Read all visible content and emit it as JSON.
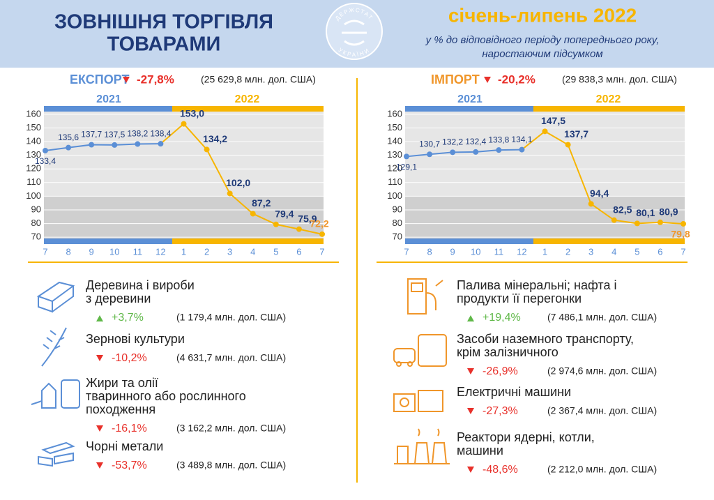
{
  "header": {
    "title_line1": "ЗОВНІШНЯ ТОРГІВЛЯ",
    "title_line2": "ТОВАРАМИ",
    "logo_top": "ДЕРЖСТАТ",
    "logo_bottom": "УКРАЇНИ",
    "period": "січень-липень 2022",
    "subtitle_line1": "у % до відповідного періоду попереднього року,",
    "subtitle_line2": "наростаючим підсумком"
  },
  "chart_data": [
    {
      "type": "line",
      "title": "ЕКСПОРТ",
      "change": "-27,8%",
      "total": "(25 629,8 млн. дол. США)",
      "years": [
        "2021",
        "2022"
      ],
      "categories": [
        "7",
        "8",
        "9",
        "10",
        "11",
        "12",
        "1",
        "2",
        "3",
        "4",
        "5",
        "6",
        "7"
      ],
      "values": [
        133.4,
        135.6,
        137.7,
        137.5,
        138.2,
        138.4,
        153.0,
        134.2,
        102.0,
        87.2,
        79.4,
        75.9,
        72.2
      ],
      "value_labels": [
        "133,4",
        "135,6",
        "137,7",
        "137,5",
        "138,2",
        "138,4",
        "153,0",
        "134,2",
        "102,0",
        "87,2",
        "79,4",
        "75,9",
        "72,2"
      ],
      "ylim": [
        66,
        163.5
      ],
      "yticks": [
        70,
        80,
        90,
        100,
        110,
        120,
        130,
        140,
        150,
        160
      ],
      "color_2021": "#5b8fd6",
      "color_2022": "#f7b500",
      "last_label_color": "#f0962a",
      "title_color": "#5b8fd6"
    },
    {
      "type": "line",
      "title": "ІМПОРТ",
      "change": "-20,2%",
      "total": "(29 838,3 млн. дол. США)",
      "years": [
        "2021",
        "2022"
      ],
      "categories": [
        "7",
        "8",
        "9",
        "10",
        "11",
        "12",
        "1",
        "2",
        "3",
        "4",
        "5",
        "6",
        "7"
      ],
      "values": [
        129.1,
        130.7,
        132.2,
        132.4,
        133.8,
        134.1,
        147.5,
        137.7,
        94.4,
        82.5,
        80.1,
        80.9,
        79.8
      ],
      "value_labels": [
        "129,1",
        "130,7",
        "132,2",
        "132,4",
        "133,8",
        "134,1",
        "147,5",
        "137,7",
        "94,4",
        "82,5",
        "80,1",
        "80,9",
        "79,8"
      ],
      "ylim": [
        66,
        163.5
      ],
      "yticks": [
        70,
        80,
        90,
        100,
        110,
        120,
        130,
        140,
        150,
        160
      ],
      "color_2021": "#5b8fd6",
      "color_2022": "#f7b500",
      "last_label_color": "#f0962a",
      "title_color": "#f0962a"
    }
  ],
  "export_items": [
    {
      "name": [
        "Деревина і вироби",
        "з деревини"
      ],
      "change": "+3,7%",
      "amount": "(1 179,4 млн. дол. США)"
    },
    {
      "name": [
        "Зернові культури"
      ],
      "change": "-10,2%",
      "amount": "(4 631,7 млн. дол. США)"
    },
    {
      "name": [
        "Жири та олії",
        "тваринного або рослинного",
        "походження"
      ],
      "change": "-16,1%",
      "amount": "(3 162,2 млн. дол. США)"
    },
    {
      "name": [
        "Чорні метали"
      ],
      "change": "-53,7%",
      "amount": "(3 489,8 млн. дол. США)"
    }
  ],
  "import_items": [
    {
      "name": [
        "Палива мінеральні; нафта і",
        "продукти її перегонки"
      ],
      "change": "+19,4%",
      "amount": "(7 486,1 млн. дол. США)"
    },
    {
      "name": [
        "Засоби наземного транспорту,",
        "крім залізничного"
      ],
      "change": "-26,9%",
      "amount": "(2 974,6 млн. дол. США)"
    },
    {
      "name": [
        "Електричні машини"
      ],
      "change": "-27,3%",
      "amount": "(2 367,4 млн. дол. США)"
    },
    {
      "name": [
        "Реактори ядерні, котли,",
        "машини"
      ],
      "change": "-48,6%",
      "amount": "(2 212,0 млн. дол. США)"
    }
  ]
}
